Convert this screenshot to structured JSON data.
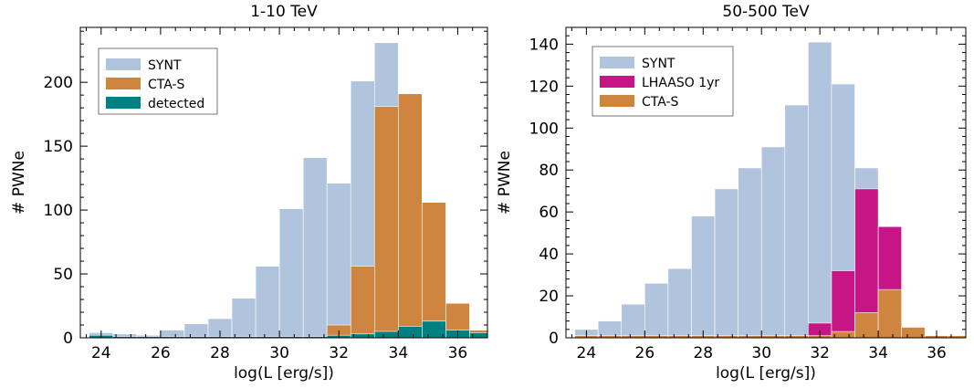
{
  "chart_data": [
    {
      "type": "bar",
      "title": "1-10 TeV",
      "xlabel": "log(L [erg/s])",
      "ylabel": "# PWNe",
      "xlim": [
        23.3,
        37.0
      ],
      "ylim": [
        0,
        243
      ],
      "xticks": [
        "24",
        "26",
        "28",
        "30",
        "32",
        "34",
        "36"
      ],
      "yticks": [
        "0",
        "50",
        "100",
        "150",
        "200"
      ],
      "bin_edges": [
        23.6,
        24.4,
        25.2,
        26.0,
        26.8,
        27.6,
        28.4,
        29.2,
        30.0,
        30.8,
        31.6,
        32.4,
        33.2,
        34.0,
        34.8,
        35.6,
        36.4,
        37.2
      ],
      "legend_position": "upper-left",
      "series": [
        {
          "name": "SYNT",
          "color": "#b0c4de",
          "values": [
            4,
            3,
            2,
            6,
            11,
            15,
            31,
            56,
            101,
            141,
            121,
            201,
            231,
            136,
            56,
            27,
            6
          ]
        },
        {
          "name": "CTA-S",
          "color": "#cd853f",
          "values": [
            0,
            0,
            0,
            0,
            0,
            0,
            0,
            0,
            0,
            0,
            10,
            56,
            181,
            191,
            106,
            27,
            6
          ]
        },
        {
          "name": "detected",
          "color": "#008080",
          "values": [
            2,
            1,
            1,
            1,
            1,
            1,
            1,
            1,
            1,
            1,
            2,
            3,
            5,
            9,
            13,
            6,
            4
          ]
        }
      ]
    },
    {
      "type": "bar",
      "title": "50-500 TeV",
      "xlabel": "log(L [erg/s])",
      "ylabel": "# PWNe",
      "xlim": [
        23.3,
        37.0
      ],
      "ylim": [
        0,
        148
      ],
      "xticks": [
        "24",
        "26",
        "28",
        "30",
        "32",
        "34",
        "36"
      ],
      "yticks": [
        "0",
        "20",
        "40",
        "60",
        "80",
        "100",
        "120",
        "140"
      ],
      "bin_edges": [
        23.6,
        24.4,
        25.2,
        26.0,
        26.8,
        27.6,
        28.4,
        29.2,
        30.0,
        30.8,
        31.6,
        32.4,
        33.2,
        34.0,
        34.8,
        35.6,
        36.4,
        37.2
      ],
      "legend_position": "upper-left",
      "series": [
        {
          "name": "SYNT",
          "color": "#b0c4de",
          "values": [
            4,
            8,
            16,
            26,
            33,
            58,
            71,
            81,
            91,
            111,
            141,
            121,
            81,
            53,
            0,
            0,
            0
          ]
        },
        {
          "name": "LHAASO 1yr",
          "color": "#c71585",
          "values": [
            0,
            0,
            0,
            0,
            0,
            0,
            0,
            0,
            0,
            0,
            7,
            32,
            71,
            53,
            0,
            0,
            0
          ]
        },
        {
          "name": "CTA-S",
          "color": "#cd853f",
          "values": [
            1,
            1,
            1,
            1,
            1,
            1,
            1,
            1,
            1,
            1,
            1,
            3,
            12,
            23,
            5,
            1,
            1
          ]
        }
      ]
    }
  ]
}
